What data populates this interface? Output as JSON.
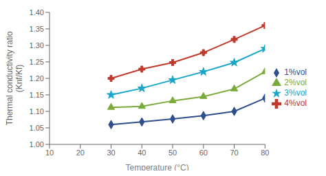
{
  "chart_data": {
    "type": "line",
    "xlabel": "Temperature (°C)",
    "ylabel": "Thermal conductivity ratio\n(Knf/Kf)",
    "x": [
      30,
      40,
      50,
      60,
      70,
      80
    ],
    "series": [
      {
        "name": "1%vol",
        "color": "#2E4E8E",
        "marker": "diamond",
        "values": [
          1.06,
          1.068,
          1.077,
          1.087,
          1.1,
          1.14
        ]
      },
      {
        "name": "2%vol",
        "color": "#7AAB3A",
        "marker": "triangle",
        "values": [
          1.112,
          1.115,
          1.132,
          1.145,
          1.168,
          1.22
        ]
      },
      {
        "name": "3%vol",
        "color": "#17A5C8",
        "marker": "star",
        "values": [
          1.15,
          1.17,
          1.195,
          1.22,
          1.248,
          1.29
        ]
      },
      {
        "name": "4%vol",
        "color": "#C0392B",
        "marker": "plus",
        "values": [
          1.2,
          1.228,
          1.248,
          1.278,
          1.318,
          1.36
        ]
      }
    ],
    "xlim": [
      10,
      80
    ],
    "xticks": [
      10,
      20,
      30,
      40,
      50,
      60,
      70,
      80
    ],
    "ylim": [
      1.0,
      1.4
    ],
    "yticks": [
      {
        "value": 1.0,
        "label": "1.00"
      },
      1.05,
      {
        "value": 1.1,
        "label": "1.10"
      },
      1.15,
      {
        "value": 1.2,
        "label": "1.20"
      },
      1.25,
      {
        "value": 1.3,
        "label": "1.30"
      },
      1.35,
      {
        "value": 1.4,
        "label": "1.40"
      }
    ],
    "grid": false,
    "legend": "right"
  }
}
